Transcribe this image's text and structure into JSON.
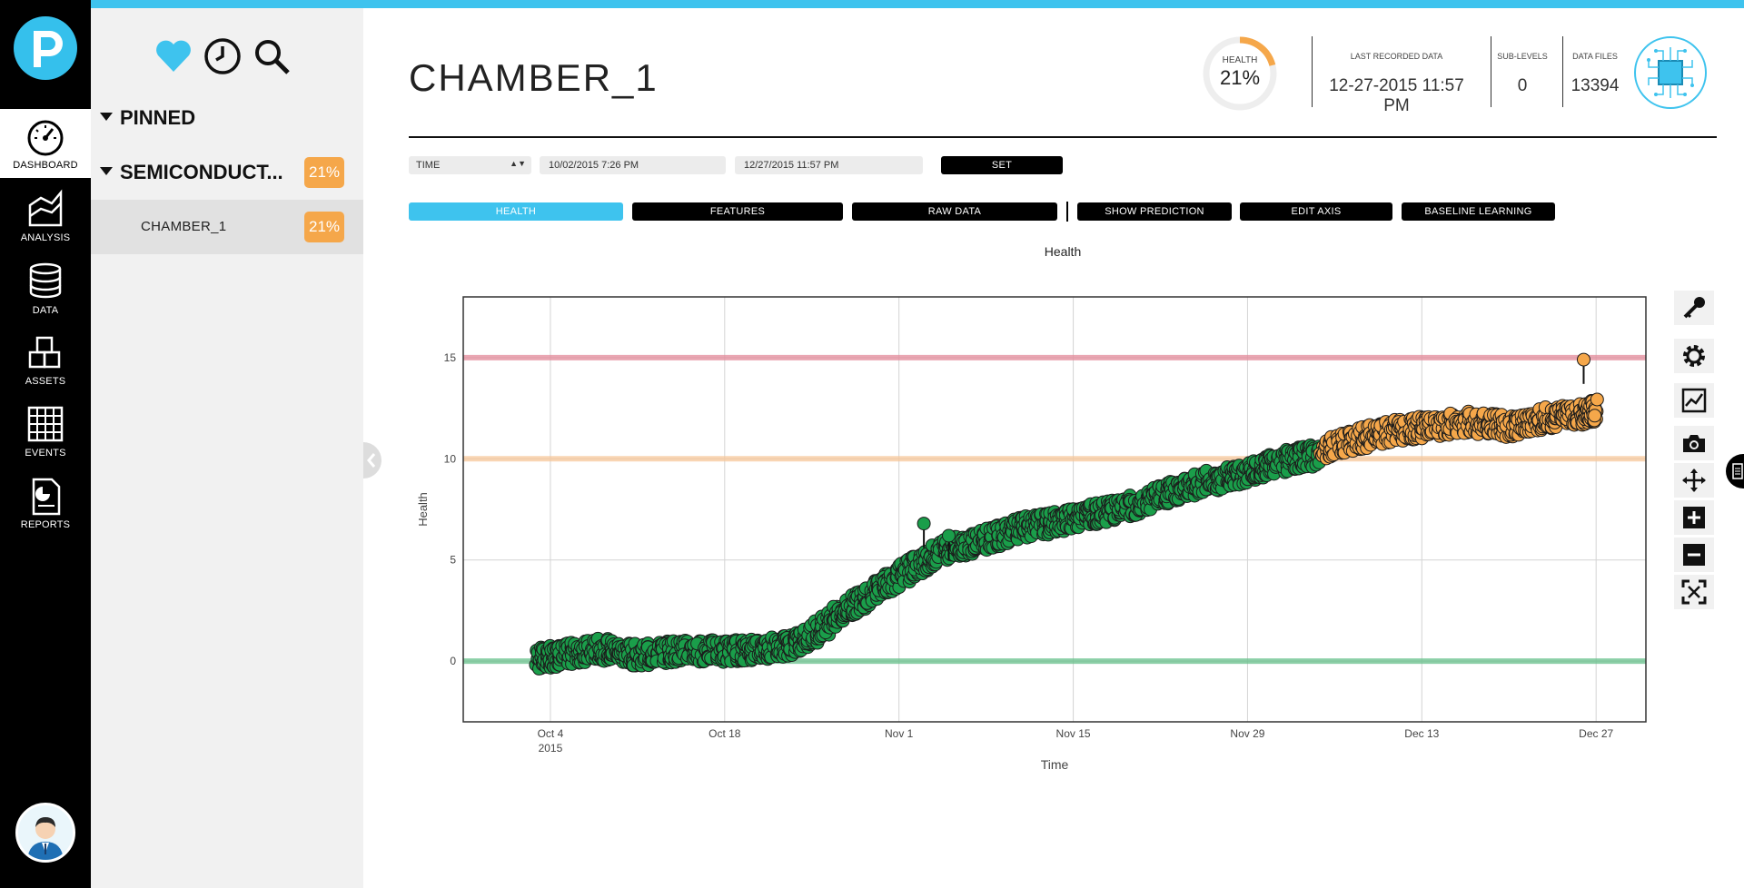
{
  "app": {
    "accent_color": "#3ec3ee",
    "logo_letter": "P",
    "logo_icon": "p-logo"
  },
  "nav": [
    {
      "label": "DASHBOARD",
      "icon": "dashboard-gauge-icon",
      "active": true
    },
    {
      "label": "ANALYSIS",
      "icon": "analysis-chart-icon",
      "active": false
    },
    {
      "label": "DATA",
      "icon": "database-icon",
      "active": false
    },
    {
      "label": "ASSETS",
      "icon": "cubes-icon",
      "active": false
    },
    {
      "label": "EVENTS",
      "icon": "calendar-grid-icon",
      "active": false
    },
    {
      "label": "REPORTS",
      "icon": "report-document-icon",
      "active": false
    }
  ],
  "tree": {
    "top_icons": [
      "heart-icon",
      "clock-icon",
      "search-icon"
    ],
    "pinned_label": "PINNED",
    "group_label": "SEMICONDUCT...",
    "group_badge": "21%",
    "item_label": "CHAMBER_1",
    "item_badge": "21%",
    "badge_color": "#f5a74a"
  },
  "header": {
    "title": "CHAMBER_1",
    "health_label": "HEALTH",
    "health_value": "21%",
    "health_fraction": 0.21,
    "last_recorded_label": "LAST RECORDED DATA",
    "last_recorded_value": "12-27-2015 11:57 PM",
    "sub_levels_label": "SUB-LEVELS",
    "sub_levels_value": "0",
    "data_files_label": "DATA FILES",
    "data_files_value": "13394",
    "device_icon": "chip-icon"
  },
  "filters": {
    "mode_value": "TIME",
    "start_value": "10/02/2015 7:26 PM",
    "end_value": "12/27/2015 11:57 PM",
    "set_label": "SET"
  },
  "tabs": {
    "health": "HEALTH",
    "features": "FEATURES",
    "raw_data": "RAW DATA",
    "show_prediction": "SHOW PREDICTION",
    "edit_axis": "EDIT AXIS",
    "baseline_learning": "BASELINE LEARNING"
  },
  "chart_data": {
    "type": "scatter",
    "title": "Health",
    "xlabel": "Time",
    "ylabel": "Health",
    "xlim": [
      "2015-09-27",
      "2015-12-31"
    ],
    "ylim": [
      -3,
      18
    ],
    "x_ticks": [
      "Oct 4",
      "Oct 18",
      "Nov 1",
      "Nov 15",
      "Nov 29",
      "Dec 13",
      "Dec 27"
    ],
    "x_tick_sublabel": "2015",
    "y_ticks": [
      0,
      5,
      10,
      15
    ],
    "grid": true,
    "thresholds": [
      {
        "value": 15,
        "color": "#e48a9a"
      },
      {
        "value": 10,
        "color": "#f7c79a"
      },
      {
        "value": 0,
        "color": "#66c08a"
      }
    ],
    "series": [
      {
        "color": "#1a9e4a",
        "x": [
          "2015-10-03",
          "2015-10-05",
          "2015-10-08",
          "2015-10-11",
          "2015-10-14",
          "2015-10-18",
          "2015-10-21",
          "2015-10-24",
          "2015-10-27",
          "2015-10-30",
          "2015-11-02",
          "2015-11-05",
          "2015-11-08",
          "2015-11-11",
          "2015-11-14",
          "2015-11-17",
          "2015-11-20",
          "2015-11-23",
          "2015-11-26",
          "2015-11-29",
          "2015-12-02",
          "2015-12-05"
        ],
        "y": [
          0.1,
          0.3,
          0.6,
          0.3,
          0.5,
          0.5,
          0.6,
          0.9,
          2.2,
          3.5,
          4.6,
          5.6,
          6.0,
          6.6,
          6.9,
          7.3,
          7.7,
          8.4,
          8.9,
          9.3,
          9.9,
          10.2
        ]
      },
      {
        "color": "#f5a74a",
        "x": [
          "2015-12-05",
          "2015-12-08",
          "2015-12-11",
          "2015-12-14",
          "2015-12-17",
          "2015-12-20",
          "2015-12-23",
          "2015-12-26",
          "2015-12-27"
        ],
        "y": [
          10.5,
          11.0,
          11.4,
          11.6,
          11.8,
          11.6,
          12.0,
          12.2,
          12.4
        ]
      }
    ],
    "spikes": [
      {
        "x": "2015-11-03",
        "y": 6.8
      },
      {
        "x": "2015-11-05",
        "y": 6.2
      },
      {
        "x": "2015-12-26",
        "y": 14.9
      }
    ]
  },
  "tools": [
    "key-icon",
    "gear-icon",
    "chart-icon",
    "camera-icon",
    "move-icon",
    "zoom-in-icon",
    "zoom-out-icon",
    "fit-screen-icon"
  ]
}
